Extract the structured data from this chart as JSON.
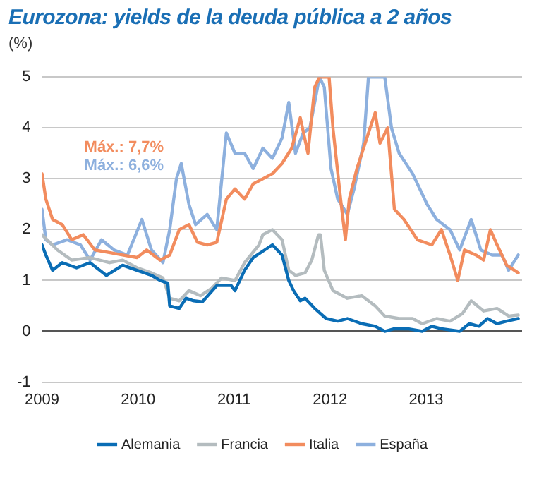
{
  "chart_data": {
    "type": "line",
    "title": "Eurozona: yields de la deuda pública a 2 años",
    "ylabel": "(%)",
    "xlim": [
      2009,
      2014
    ],
    "xticks": [
      2009,
      2010,
      2011,
      2012,
      2013
    ],
    "ylim": [
      -1,
      5
    ],
    "yticks": [
      -1,
      0,
      1,
      2,
      3,
      4,
      5
    ],
    "grid": "y",
    "legend": "bottom",
    "marker": "none",
    "line_style": "solid",
    "annotations": [
      "Máx.: 7,7%",
      "Máx.: 6,6%"
    ],
    "series": [
      {
        "name": "Alemania",
        "color": "#0a6db5",
        "x": [
          2009.0,
          2009.04,
          2009.11,
          2009.21,
          2009.36,
          2009.5,
          2009.67,
          2009.84,
          2009.99,
          2010.14,
          2010.23,
          2010.31,
          2010.33,
          2010.43,
          2010.5,
          2010.58,
          2010.67,
          2010.82,
          2010.97,
          2011.01,
          2011.11,
          2011.2,
          2011.4,
          2011.5,
          2011.57,
          2011.62,
          2011.69,
          2011.74,
          2011.84,
          2011.96,
          2012.08,
          2012.18,
          2012.33,
          2012.47,
          2012.57,
          2012.67,
          2012.81,
          2012.96,
          2013.06,
          2013.16,
          2013.35,
          2013.45,
          2013.55,
          2013.64,
          2013.74,
          2013.84,
          2013.96
        ],
        "values": [
          1.7,
          1.5,
          1.2,
          1.35,
          1.25,
          1.35,
          1.1,
          1.3,
          1.2,
          1.1,
          1.0,
          0.95,
          0.5,
          0.45,
          0.65,
          0.6,
          0.58,
          0.9,
          0.9,
          0.8,
          1.2,
          1.45,
          1.7,
          1.5,
          1.0,
          0.8,
          0.6,
          0.65,
          0.45,
          0.25,
          0.2,
          0.25,
          0.15,
          0.1,
          0.0,
          0.05,
          0.05,
          0.0,
          0.1,
          0.05,
          0.0,
          0.15,
          0.1,
          0.25,
          0.15,
          0.2,
          0.25
        ]
      },
      {
        "name": "Francia",
        "color": "#b4bcbf",
        "x": [
          2009.0,
          2009.16,
          2009.31,
          2009.5,
          2009.7,
          2009.84,
          2009.99,
          2010.14,
          2010.26,
          2010.33,
          2010.43,
          2010.53,
          2010.65,
          2010.77,
          2010.87,
          2011.01,
          2011.11,
          2011.26,
          2011.3,
          2011.4,
          2011.5,
          2011.57,
          2011.64,
          2011.74,
          2011.81,
          2011.88,
          2011.9,
          2011.94,
          2012.03,
          2012.18,
          2012.33,
          2012.47,
          2012.57,
          2012.72,
          2012.86,
          2012.96,
          2013.11,
          2013.25,
          2013.38,
          2013.47,
          2013.6,
          2013.74,
          2013.86,
          2013.96
        ],
        "values": [
          1.9,
          1.6,
          1.4,
          1.45,
          1.35,
          1.4,
          1.25,
          1.15,
          1.05,
          0.65,
          0.6,
          0.8,
          0.7,
          0.85,
          1.05,
          1.0,
          1.35,
          1.7,
          1.9,
          2.0,
          1.8,
          1.2,
          1.1,
          1.15,
          1.4,
          1.9,
          1.9,
          1.2,
          0.8,
          0.65,
          0.7,
          0.5,
          0.3,
          0.25,
          0.25,
          0.15,
          0.25,
          0.2,
          0.35,
          0.6,
          0.4,
          0.45,
          0.3,
          0.32
        ]
      },
      {
        "name": "Italia",
        "color": "#f28c5e",
        "x": [
          2009.0,
          2009.04,
          2009.11,
          2009.21,
          2009.31,
          2009.43,
          2009.55,
          2009.7,
          2009.84,
          2009.99,
          2010.09,
          2010.23,
          2010.33,
          2010.43,
          2010.53,
          2010.62,
          2010.72,
          2010.82,
          2010.92,
          2011.01,
          2011.11,
          2011.2,
          2011.3,
          2011.4,
          2011.5,
          2011.6,
          2011.69,
          2011.77,
          2011.84,
          2011.89,
          2011.99,
          2012.03,
          2012.11,
          2012.16,
          2012.2,
          2012.28,
          2012.4,
          2012.47,
          2012.52,
          2012.6,
          2012.67,
          2012.77,
          2012.91,
          2013.06,
          2013.16,
          2013.25,
          2013.33,
          2013.4,
          2013.52,
          2013.6,
          2013.67,
          2013.74,
          2013.84,
          2013.96
        ],
        "values": [
          3.1,
          2.6,
          2.2,
          2.1,
          1.8,
          1.9,
          1.6,
          1.55,
          1.5,
          1.45,
          1.6,
          1.4,
          1.5,
          2.0,
          2.1,
          1.75,
          1.7,
          1.75,
          2.6,
          2.8,
          2.6,
          2.9,
          3.0,
          3.1,
          3.3,
          3.6,
          4.2,
          3.5,
          4.8,
          5,
          5,
          4.0,
          2.6,
          1.8,
          2.6,
          3.2,
          3.9,
          4.3,
          3.7,
          4.0,
          2.4,
          2.2,
          1.8,
          1.7,
          2.0,
          1.5,
          1.0,
          1.6,
          1.5,
          1.4,
          2.0,
          1.7,
          1.3,
          1.15
        ]
      },
      {
        "name": "España",
        "color": "#8db0de",
        "x": [
          2009.0,
          2009.04,
          2009.11,
          2009.26,
          2009.4,
          2009.5,
          2009.62,
          2009.75,
          2009.89,
          2010.04,
          2010.14,
          2010.26,
          2010.33,
          2010.4,
          2010.45,
          2010.53,
          2010.6,
          2010.72,
          2010.82,
          2010.92,
          2011.01,
          2011.11,
          2011.2,
          2011.3,
          2011.4,
          2011.5,
          2011.57,
          2011.64,
          2011.72,
          2011.79,
          2011.89,
          2011.94,
          2012.01,
          2012.08,
          2012.18,
          2012.25,
          2012.35,
          2012.4,
          2012.57,
          2012.64,
          2012.72,
          2012.86,
          2013.01,
          2013.11,
          2013.25,
          2013.35,
          2013.47,
          2013.57,
          2013.69,
          2013.79,
          2013.86,
          2013.96
        ],
        "values": [
          2.4,
          1.8,
          1.7,
          1.8,
          1.7,
          1.4,
          1.8,
          1.6,
          1.5,
          2.2,
          1.6,
          1.35,
          2.0,
          3.0,
          3.3,
          2.5,
          2.1,
          2.3,
          2.0,
          3.9,
          3.5,
          3.5,
          3.2,
          3.6,
          3.4,
          3.8,
          4.5,
          3.5,
          3.9,
          4.0,
          5,
          4.8,
          3.2,
          2.6,
          2.3,
          2.8,
          3.7,
          5,
          5,
          4.0,
          3.5,
          3.1,
          2.5,
          2.2,
          2.0,
          1.6,
          2.2,
          1.6,
          1.5,
          1.5,
          1.2,
          1.5
        ]
      }
    ]
  }
}
